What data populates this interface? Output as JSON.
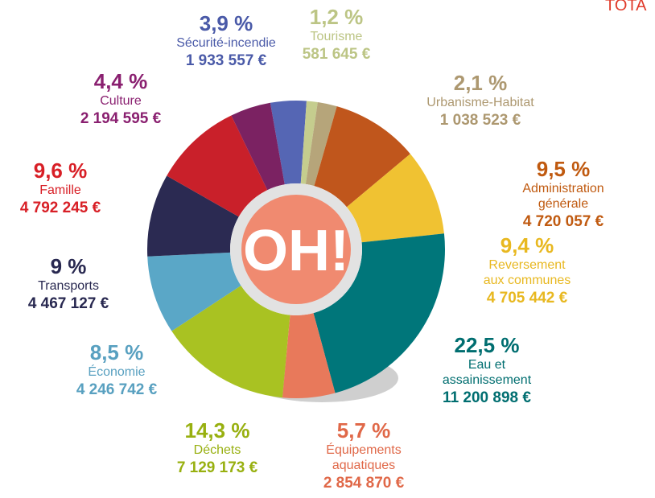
{
  "chart_data": {
    "type": "donut",
    "title": "TOTA",
    "center_label": "OH!",
    "categories": [
      "Sécurité-incendie",
      "Tourisme",
      "Urbanisme-Habitat",
      "Administration générale",
      "Reversement\naux communes",
      "Eau et\nassainissement",
      "Équipements\naquatiques",
      "Déchets",
      "Économie",
      "Transports",
      "Famille",
      "Culture"
    ],
    "values": [
      3.9,
      1.2,
      2.1,
      9.5,
      9.4,
      22.5,
      5.7,
      14.3,
      8.5,
      9,
      9.6,
      4.4
    ],
    "value_labels": [
      "3,9 %",
      "1,2 %",
      "2,1 %",
      "9,5 %",
      "9,4 %",
      "22,5 %",
      "5,7 %",
      "14,3 %",
      "8,5 %",
      "9 %",
      "9,6 %",
      "4,4 %"
    ],
    "amount_labels": [
      "1 933 557 €",
      "581 645 €",
      "1 038 523 €",
      "4 720 057 €",
      "4 705 442 €",
      "11 200 898 €",
      "2 854 870 €",
      "7 129 173 €",
      "4 246 742 €",
      "4 467 127 €",
      "4 792 245 €",
      "2 194 595 €"
    ],
    "colors": [
      "#5566b4",
      "#c5cd8e",
      "#b6a57a",
      "#c0561c",
      "#f0c232",
      "#00767a",
      "#e8795b",
      "#a9c222",
      "#5aa7c7",
      "#2b2a52",
      "#c9202a",
      "#7b2262"
    ],
    "label_colors": [
      "#4a5aa8",
      "#bcc585",
      "#ad9870",
      "#c05a10",
      "#e8b820",
      "#006e70",
      "#e06848",
      "#98b010",
      "#58a0c0",
      "#282850",
      "#d81f26",
      "#8a2070"
    ]
  }
}
